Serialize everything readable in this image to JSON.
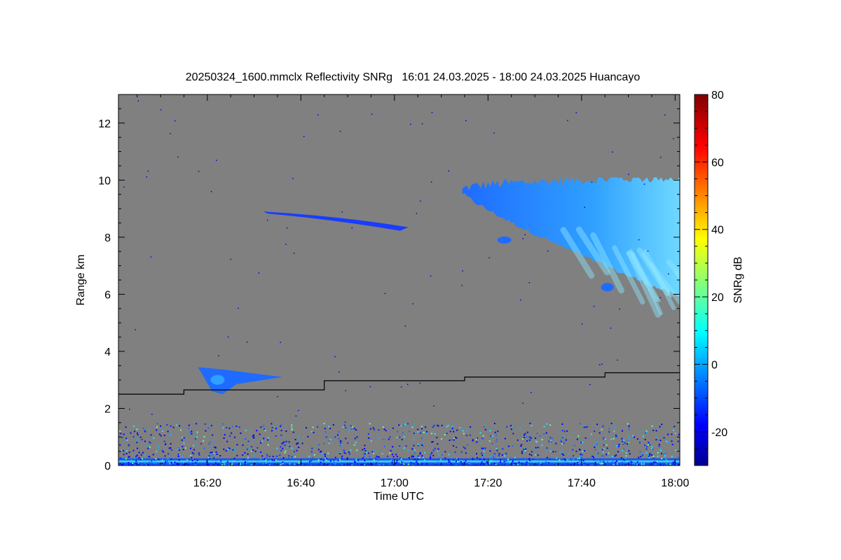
{
  "chart_data": {
    "type": "heatmap",
    "title": "20250324_1600.mmclx Reflectivity SNRg   16:01 24.03.2025 - 18:00 24.03.2025 Huancayo",
    "xlabel": "Time UTC",
    "ylabel": "Range km",
    "colorbar_label": "SNRg dB",
    "xlim_minutes_after_1600": [
      1,
      121
    ],
    "ylim": [
      0,
      13
    ],
    "x_ticks": [
      {
        "minutes": 20,
        "label": "16:20"
      },
      {
        "minutes": 40,
        "label": "16:40"
      },
      {
        "minutes": 60,
        "label": "17:00"
      },
      {
        "minutes": 80,
        "label": "17:20"
      },
      {
        "minutes": 100,
        "label": "17:40"
      },
      {
        "minutes": 120,
        "label": "18:00"
      }
    ],
    "y_ticks": [
      0,
      2,
      4,
      6,
      8,
      10,
      12
    ],
    "colorbar": {
      "range": [
        -30,
        80
      ],
      "ticks": [
        -20,
        0,
        20,
        40,
        60,
        80
      ],
      "colormap": "jet"
    },
    "background_color": "#808080",
    "line_series": {
      "name": "",
      "color": "#000000",
      "points": [
        [
          1,
          2.5
        ],
        [
          15,
          2.5
        ],
        [
          15,
          2.65
        ],
        [
          45,
          2.65
        ],
        [
          45,
          2.97
        ],
        [
          75,
          2.97
        ],
        [
          75,
          3.1
        ],
        [
          105,
          3.1
        ],
        [
          105,
          3.25
        ],
        [
          121,
          3.25
        ]
      ]
    },
    "echo_regions": [
      {
        "description": "upper cloud layer",
        "time_range": [
          74.5,
          121
        ],
        "range_km": [
          5.9,
          10.1
        ],
        "snr_dB_approx": [
          -15,
          5
        ]
      },
      {
        "description": "thin layer",
        "time_range": [
          32,
          63
        ],
        "range_km": [
          8.2,
          9.0
        ],
        "snr_dB_approx": [
          -20,
          -15
        ]
      },
      {
        "description": "small echo",
        "time_range": [
          18,
          36
        ],
        "range_km": [
          2.5,
          3.45
        ],
        "snr_dB_approx": [
          -15,
          0
        ]
      },
      {
        "description": "near-surface clutter",
        "time_range": [
          1,
          121
        ],
        "range_km": [
          0,
          1.5
        ],
        "snr_dB_approx": [
          -20,
          20
        ]
      }
    ]
  }
}
